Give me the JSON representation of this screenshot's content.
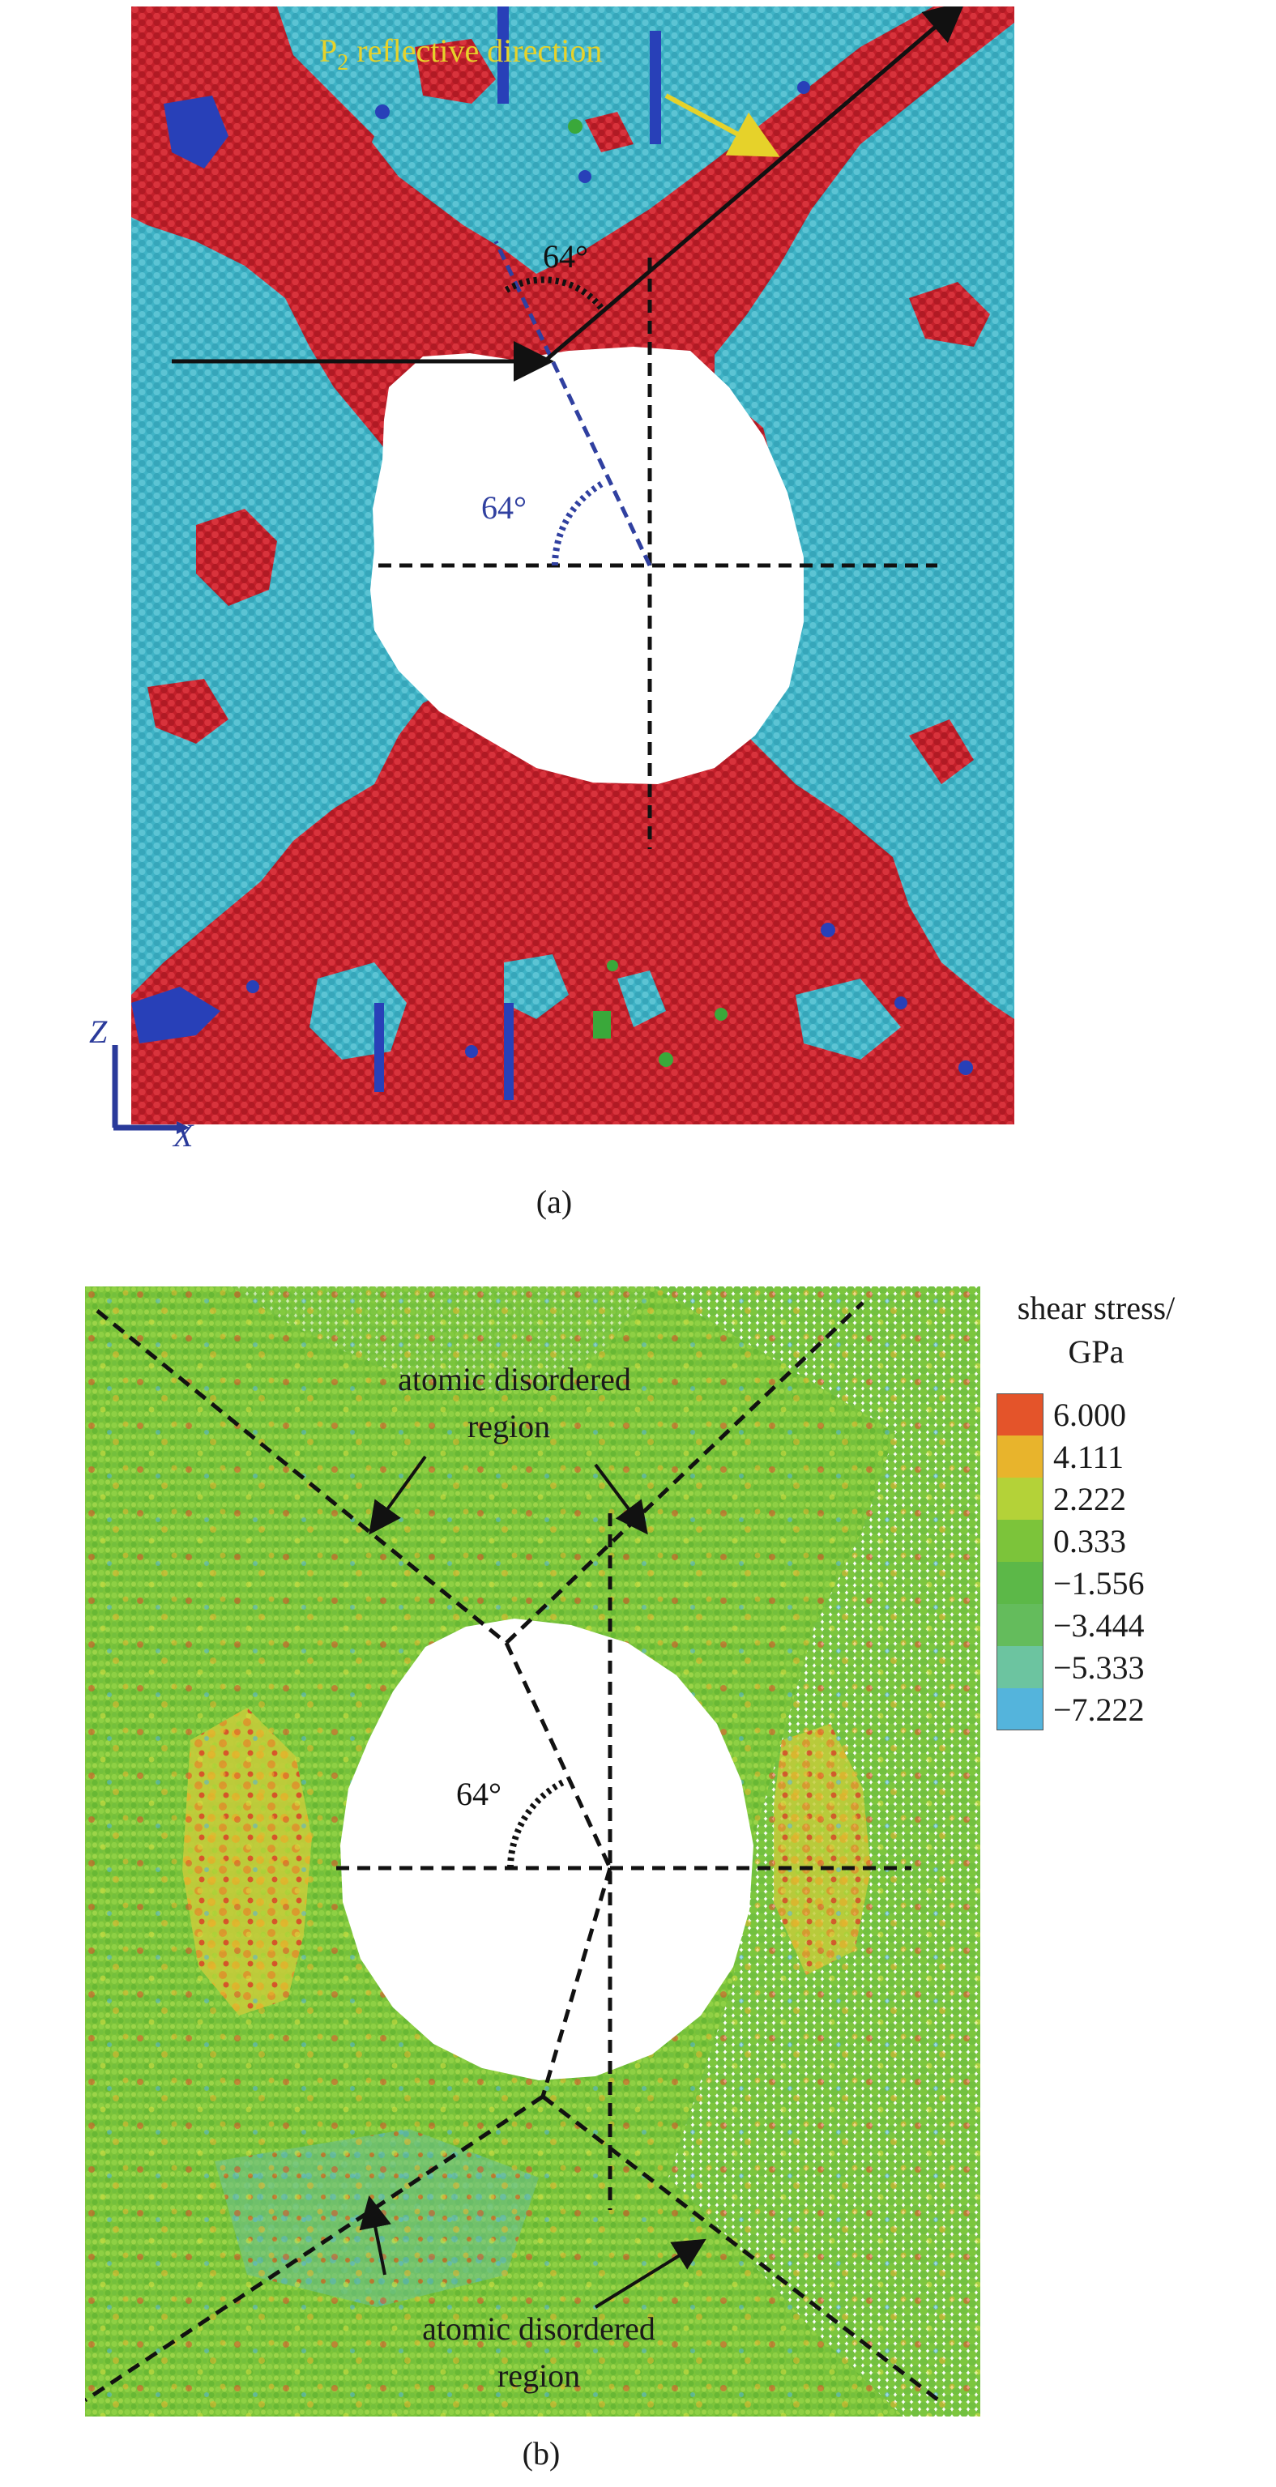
{
  "panel_a": {
    "caption": "(a)",
    "reflective_label_main": "P",
    "reflective_label_sub": "2",
    "reflective_label_rest": " reflective direction",
    "angle_top": "64°",
    "angle_inner": "64°",
    "axis_z": "Z",
    "axis_x": "X",
    "colors": {
      "red": "#c8242e",
      "cyan": "#3fb3c6",
      "blue": "#2840b8",
      "green": "#3aa83a",
      "yellow_arrow": "#e6d22a"
    }
  },
  "panel_b": {
    "caption": "(b)",
    "angle": "64°",
    "annotation_top_line1": "atomic disordered",
    "annotation_top_line2": "region",
    "annotation_bottom_line1": "atomic disordered",
    "annotation_bottom_line2": "region"
  },
  "legend": {
    "title_line1": "shear stress/",
    "title_line2": "GPa",
    "items": [
      {
        "value": "6.000",
        "color": "#e4542a"
      },
      {
        "value": "4.111",
        "color": "#e8b42c"
      },
      {
        "value": "2.222",
        "color": "#b4d238"
      },
      {
        "value": "0.333",
        "color": "#7cc43a"
      },
      {
        "value": "−1.556",
        "color": "#5cb848"
      },
      {
        "value": "−3.444",
        "color": "#64bc5c"
      },
      {
        "value": "−5.333",
        "color": "#6cc4a0"
      },
      {
        "value": "−7.222",
        "color": "#54b4dc"
      }
    ]
  }
}
